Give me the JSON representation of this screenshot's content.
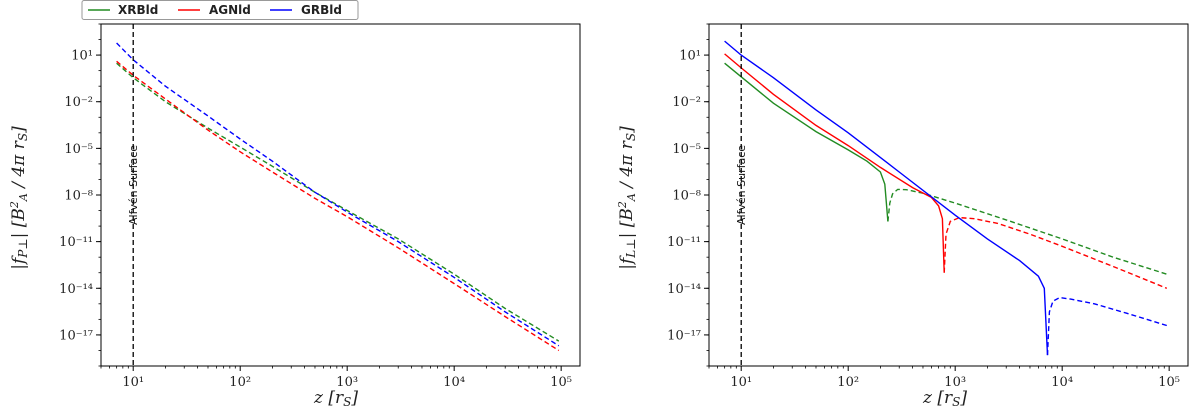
{
  "legend": {
    "placement": "top-left, above plots",
    "entries": [
      {
        "name": "XRBld",
        "color": "#228b22"
      },
      {
        "name": "AGNld",
        "color": "#ff0000"
      },
      {
        "name": "GRBld",
        "color": "#0000ff"
      }
    ]
  },
  "chart_data": [
    {
      "type": "line",
      "xlabel": "z [r_S]",
      "ylabel": "|f_P⊥| [B_A^2 / 4π r_S]",
      "xscale": "log",
      "yscale": "log",
      "xlim": [
        5,
        150000
      ],
      "ylim": [
        1e-19,
        1000.0
      ],
      "xticks": [
        {
          "value": 10,
          "label": "10¹"
        },
        {
          "value": 100,
          "label": "10²"
        },
        {
          "value": 1000,
          "label": "10³"
        },
        {
          "value": 10000,
          "label": "10⁴"
        },
        {
          "value": 100000,
          "label": "10⁵"
        }
      ],
      "yticks": [
        {
          "value": 10,
          "label": "10¹"
        },
        {
          "value": 0.01,
          "label": "10⁻²"
        },
        {
          "value": 1e-05,
          "label": "10⁻⁵"
        },
        {
          "value": 1e-08,
          "label": "10⁻⁸"
        },
        {
          "value": 1e-11,
          "label": "10⁻¹¹"
        },
        {
          "value": 1e-14,
          "label": "10⁻¹⁴"
        },
        {
          "value": 1e-17,
          "label": "10⁻¹⁷"
        }
      ],
      "vline": {
        "x": 10,
        "label": "Alfvén Surface"
      },
      "series": [
        {
          "name": "XRBld",
          "color": "#228b22",
          "segments": [
            {
              "style": "dashed",
              "x": [
                7,
                10,
                20,
                50,
                100,
                200,
                500,
                1000,
                3000,
                10000,
                30000,
                95000
              ],
              "y": [
                3,
                0.35,
                0.01,
                0.0002,
                1.2e-05,
                7e-07,
                1.5e-08,
                1e-09,
                1.5e-11,
                8e-14,
                5e-16,
                4e-18
              ]
            }
          ]
        },
        {
          "name": "AGNld",
          "color": "#ff0000",
          "segments": [
            {
              "style": "dashed",
              "x": [
                7,
                10,
                20,
                50,
                100,
                200,
                500,
                1000,
                3000,
                10000,
                30000,
                95000
              ],
              "y": [
                4,
                0.5,
                0.015,
                0.00015,
                6e-06,
                3e-07,
                6e-09,
                4e-10,
                4e-12,
                2e-14,
                1.5e-16,
                1e-18
              ]
            }
          ]
        },
        {
          "name": "GRBld",
          "color": "#0000ff",
          "segments": [
            {
              "style": "dashed",
              "x": [
                7,
                10,
                20,
                50,
                100,
                200,
                500,
                1000,
                3000,
                10000,
                30000,
                95000
              ],
              "y": [
                60,
                5,
                0.1,
                0.0012,
                4e-05,
                1.5e-06,
                1.5e-08,
                8e-10,
                1e-11,
                5e-14,
                3e-16,
                2e-18
              ]
            }
          ]
        }
      ]
    },
    {
      "type": "line",
      "xlabel": "z [r_S]",
      "ylabel": "|f_L⊥| [B_A^2 / 4π r_S]",
      "xscale": "log",
      "yscale": "log",
      "xlim": [
        5,
        150000
      ],
      "ylim": [
        1e-19,
        1000.0
      ],
      "xticks": [
        {
          "value": 10,
          "label": "10¹"
        },
        {
          "value": 100,
          "label": "10²"
        },
        {
          "value": 1000,
          "label": "10³"
        },
        {
          "value": 10000,
          "label": "10⁴"
        },
        {
          "value": 100000,
          "label": "10⁵"
        }
      ],
      "yticks": [
        {
          "value": 10,
          "label": "10¹"
        },
        {
          "value": 0.01,
          "label": "10⁻²"
        },
        {
          "value": 1e-05,
          "label": "10⁻⁵"
        },
        {
          "value": 1e-08,
          "label": "10⁻⁸"
        },
        {
          "value": 1e-11,
          "label": "10⁻¹¹"
        },
        {
          "value": 1e-14,
          "label": "10⁻¹⁴"
        },
        {
          "value": 1e-17,
          "label": "10⁻¹⁷"
        }
      ],
      "vline": {
        "x": 10,
        "label": "Alfvén Surface"
      },
      "series": [
        {
          "name": "XRBld",
          "color": "#228b22",
          "segments": [
            {
              "style": "solid",
              "x": [
                7,
                10,
                20,
                50,
                100,
                150,
                200,
                220,
                235
              ],
              "y": [
                3,
                0.4,
                0.008,
                0.00012,
                8e-06,
                1.5e-06,
                3e-07,
                5e-08,
                2e-10
              ]
            },
            {
              "style": "dashed",
              "x": [
                235,
                245,
                260,
                290,
                350,
                500,
                1000,
                3000,
                10000,
                30000,
                95000
              ],
              "y": [
                2e-10,
                3e-09,
                1.2e-08,
                2.3e-08,
                2.2e-08,
                1.3e-08,
                3e-09,
                2.5e-10,
                1.5e-11,
                1e-12,
                8e-14
              ]
            }
          ]
        },
        {
          "name": "AGNld",
          "color": "#ff0000",
          "segments": [
            {
              "style": "solid",
              "x": [
                7,
                10,
                20,
                50,
                100,
                200,
                400,
                600,
                700,
                760,
                790
              ],
              "y": [
                12,
                1.5,
                0.03,
                0.0003,
                1.5e-05,
                6e-07,
                3e-08,
                7e-09,
                2e-09,
                3e-10,
                1e-13
              ]
            },
            {
              "style": "dashed",
              "x": [
                790,
                820,
                900,
                1100,
                1500,
                2500,
                5000,
                10000,
                30000,
                95000
              ],
              "y": [
                1e-13,
                3e-11,
                2e-10,
                3.5e-10,
                3e-10,
                1.5e-10,
                3e-11,
                5e-12,
                2.5e-13,
                1e-14
              ]
            }
          ]
        },
        {
          "name": "GRBld",
          "color": "#0000ff",
          "segments": [
            {
              "style": "solid",
              "x": [
                7,
                10,
                20,
                50,
                100,
                300,
                1000,
                2000,
                4000,
                6000,
                6800,
                7300
              ],
              "y": [
                80,
                10,
                0.35,
                0.003,
                0.0001,
                3e-07,
                5e-10,
                1.5e-11,
                6e-13,
                6e-14,
                1e-14,
                5e-19
              ]
            },
            {
              "style": "dashed",
              "x": [
                7300,
                7600,
                8200,
                9500,
                12000,
                20000,
                40000,
                95000
              ],
              "y": [
                5e-19,
                3e-16,
                1.5e-15,
                2.5e-15,
                2e-15,
                1e-15,
                2.5e-16,
                4e-17
              ]
            }
          ]
        }
      ]
    }
  ]
}
